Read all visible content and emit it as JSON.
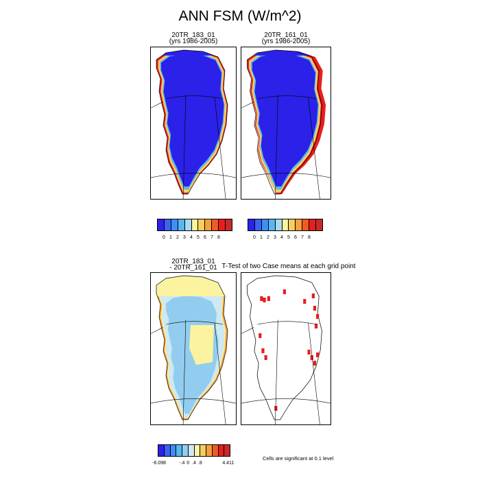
{
  "title": "ANN FSM (W/m^2)",
  "panels": {
    "case1": {
      "name": "20TR_183_01",
      "years": "(yrs 1986-2005)"
    },
    "case2": {
      "name": "20TR_161_01",
      "years": "(yrs 1986-2005)"
    },
    "diff": {
      "line1": "20TR_183_01",
      "line2": "- 20TR_161_01"
    },
    "ttest": {
      "title": "T-Test of two Case means at each grid point"
    }
  },
  "colorbars": {
    "top": {
      "colors": [
        "#2b21e8",
        "#3a62f3",
        "#3d8ff5",
        "#58b7f2",
        "#a7dcef",
        "#fbf3a0",
        "#f8cf5e",
        "#f5a03a",
        "#ee5c26",
        "#e81e1e",
        "#c82a28"
      ],
      "ticks": [
        "0",
        "1",
        "2",
        "3",
        "4",
        "5",
        "6",
        "7",
        "8"
      ]
    },
    "bottom": {
      "colors": [
        "#2b21e8",
        "#3a62f3",
        "#3d8ff5",
        "#58b7f2",
        "#92cdef",
        "#cde9f1",
        "#fbf3a0",
        "#f8cf5e",
        "#f5a03a",
        "#ee5c26",
        "#e81e1e",
        "#c82a28"
      ],
      "ticks": [
        "-6.098",
        "-.4",
        "0",
        ".4",
        ".8",
        "4.411"
      ]
    }
  },
  "significance_note": "Cells are significant at 0.1 level",
  "chart_data": [
    {
      "type": "heatmap",
      "title": "20TR_183_01",
      "subtitle": "(yrs 1986-2005)",
      "region": "Greenland",
      "units": "W/m^2",
      "levels": [
        0,
        1,
        2,
        3,
        4,
        5,
        6,
        7,
        8
      ],
      "interior_value": 0,
      "coastal_values": [
        4,
        8
      ]
    },
    {
      "type": "heatmap",
      "title": "20TR_161_01",
      "subtitle": "(yrs 1986-2005)",
      "region": "Greenland",
      "units": "W/m^2",
      "levels": [
        0,
        1,
        2,
        3,
        4,
        5,
        6,
        7,
        8
      ],
      "interior_value": 0,
      "coastal_values": [
        4,
        8
      ]
    },
    {
      "type": "heatmap",
      "title": "20TR_183_01 - 20TR_161_01",
      "region": "Greenland",
      "units": "W/m^2",
      "range": [
        -6.098,
        4.411
      ],
      "labeled_levels": [
        -0.4,
        0,
        0.4,
        0.8
      ]
    },
    {
      "type": "heatmap",
      "title": "T-Test of two Case means at each grid point",
      "region": "Greenland",
      "significance_level": 0.1
    }
  ]
}
